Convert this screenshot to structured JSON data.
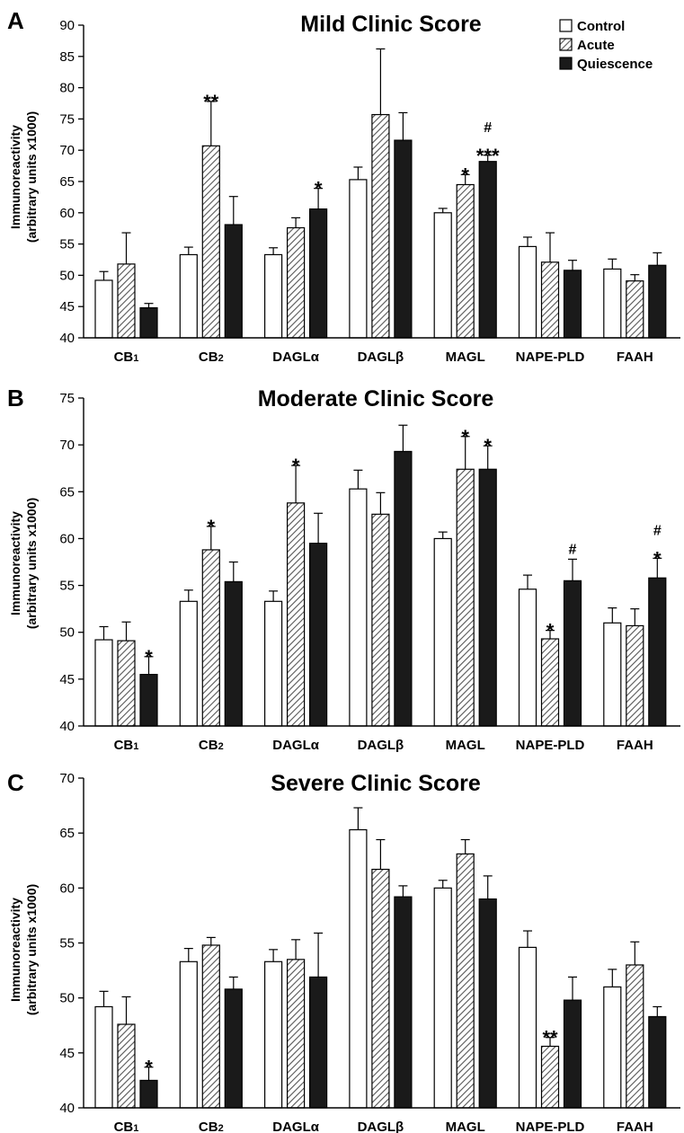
{
  "legend": [
    {
      "name": "Control",
      "style": "white"
    },
    {
      "name": "Acute",
      "style": "hatched"
    },
    {
      "name": "Quiescence",
      "style": "black"
    }
  ],
  "colors": {
    "control_fill": "#ffffff",
    "acute_hatch": "#555555",
    "quiescence_fill": "#1a1a1a",
    "axis": "#000000"
  },
  "chart_data": [
    {
      "type": "bar",
      "panel_label": "A",
      "title": "Mild Clinic Score",
      "ylabel_line1": "Immunoreactivity",
      "ylabel_line2": "(arbitrary units x1000)",
      "ylim": [
        40,
        90
      ],
      "yticks": [
        40,
        45,
        50,
        55,
        60,
        65,
        70,
        75,
        80,
        85,
        90
      ],
      "categories": [
        "CB1",
        "CB2",
        "DAGLα",
        "DAGLβ",
        "MAGL",
        "NAPE-PLD",
        "FAAH"
      ],
      "series": [
        {
          "name": "Control",
          "values": [
            49.2,
            53.3,
            53.3,
            65.3,
            60.0,
            54.6,
            51.0
          ],
          "errors": [
            1.4,
            1.2,
            1.1,
            2.0,
            0.7,
            1.5,
            1.6
          ]
        },
        {
          "name": "Acute",
          "values": [
            51.8,
            70.7,
            57.6,
            75.7,
            64.5,
            52.1,
            49.1
          ],
          "errors": [
            5.0,
            7.1,
            1.6,
            10.5,
            1.6,
            4.7,
            1.0
          ]
        },
        {
          "name": "Quiescence",
          "values": [
            44.8,
            58.1,
            60.6,
            71.6,
            68.2,
            50.8,
            51.6
          ],
          "errors": [
            0.7,
            4.5,
            3.3,
            4.4,
            1.0,
            1.6,
            2.0
          ]
        }
      ],
      "significance": [
        {
          "category": 1,
          "series": 1,
          "marks": [
            "**"
          ]
        },
        {
          "category": 2,
          "series": 2,
          "marks": [
            "*"
          ]
        },
        {
          "category": 4,
          "series": 1,
          "marks": [
            "*"
          ]
        },
        {
          "category": 4,
          "series": 2,
          "marks": [
            "***",
            "#"
          ]
        }
      ]
    },
    {
      "type": "bar",
      "panel_label": "B",
      "title": "Moderate Clinic Score",
      "ylabel_line1": "Immunoreactivity",
      "ylabel_line2": "(arbitrary units x1000)",
      "ylim": [
        40,
        75
      ],
      "yticks": [
        40,
        45,
        50,
        55,
        60,
        65,
        70,
        75
      ],
      "categories": [
        "CB1",
        "CB2",
        "DAGLα",
        "DAGLβ",
        "MAGL",
        "NAPE-PLD",
        "FAAH"
      ],
      "series": [
        {
          "name": "Control",
          "values": [
            49.2,
            53.3,
            53.3,
            65.3,
            60.0,
            54.6,
            51.0
          ],
          "errors": [
            1.4,
            1.2,
            1.1,
            2.0,
            0.7,
            1.5,
            1.6
          ]
        },
        {
          "name": "Acute",
          "values": [
            49.1,
            58.8,
            63.8,
            62.6,
            67.4,
            49.3,
            50.7
          ],
          "errors": [
            2.0,
            2.5,
            4.0,
            2.3,
            3.5,
            0.9,
            1.8
          ]
        },
        {
          "name": "Quiescence",
          "values": [
            45.5,
            55.4,
            59.5,
            69.3,
            67.4,
            55.5,
            55.8
          ],
          "errors": [
            1.9,
            2.1,
            3.2,
            2.8,
            2.5,
            2.3,
            2.1
          ]
        }
      ],
      "significance": [
        {
          "category": 0,
          "series": 2,
          "marks": [
            "*"
          ]
        },
        {
          "category": 1,
          "series": 1,
          "marks": [
            "*"
          ]
        },
        {
          "category": 2,
          "series": 1,
          "marks": [
            "*"
          ]
        },
        {
          "category": 4,
          "series": 1,
          "marks": [
            "*"
          ]
        },
        {
          "category": 4,
          "series": 2,
          "marks": [
            "*"
          ]
        },
        {
          "category": 5,
          "series": 1,
          "marks": [
            "*"
          ]
        },
        {
          "category": 5,
          "series": 2,
          "marks": [
            "#"
          ]
        },
        {
          "category": 6,
          "series": 2,
          "marks": [
            "*",
            "#"
          ]
        }
      ]
    },
    {
      "type": "bar",
      "panel_label": "C",
      "title": "Severe Clinic Score",
      "ylabel_line1": "Immunoreactivity",
      "ylabel_line2": "(arbitrary units x1000)",
      "ylim": [
        40,
        70
      ],
      "yticks": [
        40,
        45,
        50,
        55,
        60,
        65,
        70
      ],
      "categories": [
        "CB1",
        "CB2",
        "DAGLα",
        "DAGLβ",
        "MAGL",
        "NAPE-PLD",
        "FAAH"
      ],
      "series": [
        {
          "name": "Control",
          "values": [
            49.2,
            53.3,
            53.3,
            65.3,
            60.0,
            54.6,
            51.0
          ],
          "errors": [
            1.4,
            1.2,
            1.1,
            2.0,
            0.7,
            1.5,
            1.6
          ]
        },
        {
          "name": "Acute",
          "values": [
            47.6,
            54.8,
            53.5,
            61.7,
            63.1,
            45.6,
            53.0
          ],
          "errors": [
            2.5,
            0.7,
            1.8,
            2.7,
            1.3,
            0.8,
            2.1
          ]
        },
        {
          "name": "Quiescence",
          "values": [
            42.5,
            50.8,
            51.9,
            59.2,
            59.0,
            49.8,
            48.3
          ],
          "errors": [
            1.2,
            1.1,
            4.0,
            1.0,
            2.1,
            2.1,
            0.9
          ]
        }
      ],
      "significance": [
        {
          "category": 0,
          "series": 2,
          "marks": [
            "*"
          ]
        },
        {
          "category": 5,
          "series": 1,
          "marks": [
            "**"
          ]
        }
      ]
    }
  ]
}
